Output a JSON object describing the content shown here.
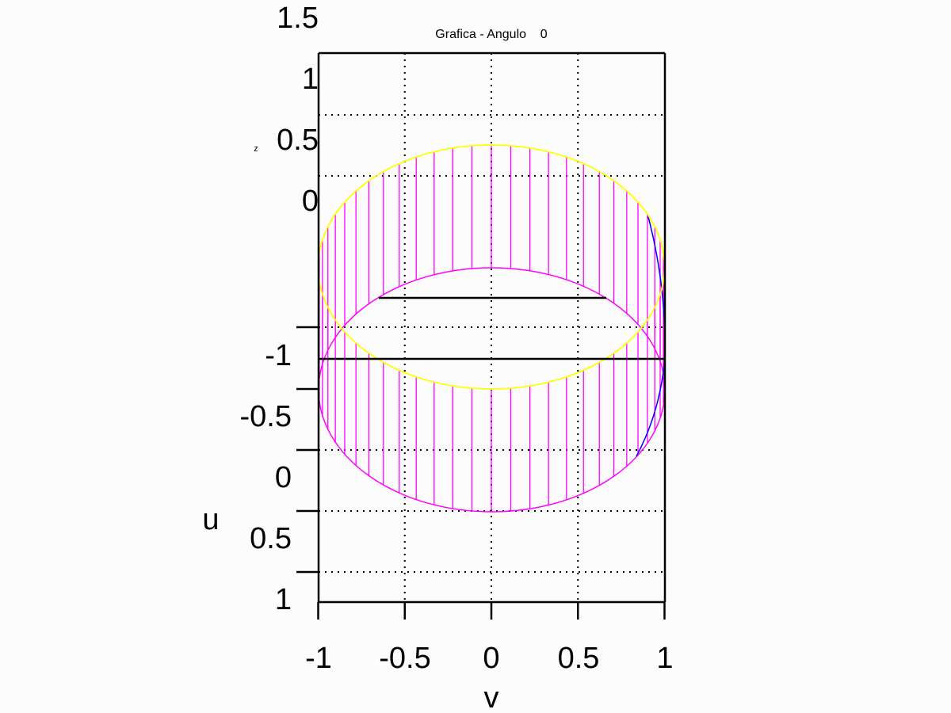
{
  "chart_data": {
    "type": "line",
    "title": "Grafica - Angulo    0",
    "xlabel": "v",
    "ylabel": "u",
    "zlabel": "z",
    "x": {
      "ticks": [
        "-1",
        "-0.5",
        "0",
        "0.5",
        "1"
      ],
      "range": [
        -1,
        1
      ]
    },
    "u": {
      "ticks": [
        "-1",
        "-0.5",
        "0",
        "0.5",
        "1"
      ],
      "range": [
        -1,
        1
      ]
    },
    "z": {
      "ticks": [
        "1.5",
        "1",
        "0.5",
        "0"
      ],
      "range": [
        0,
        1.5
      ]
    },
    "grid": true,
    "series": [
      {
        "surface": "cylinder side",
        "color": "#ff00ff"
      },
      {
        "surface": "top rim",
        "color": "#ffff00"
      },
      {
        "surface": "back seam",
        "color": "#0000ff"
      }
    ]
  }
}
